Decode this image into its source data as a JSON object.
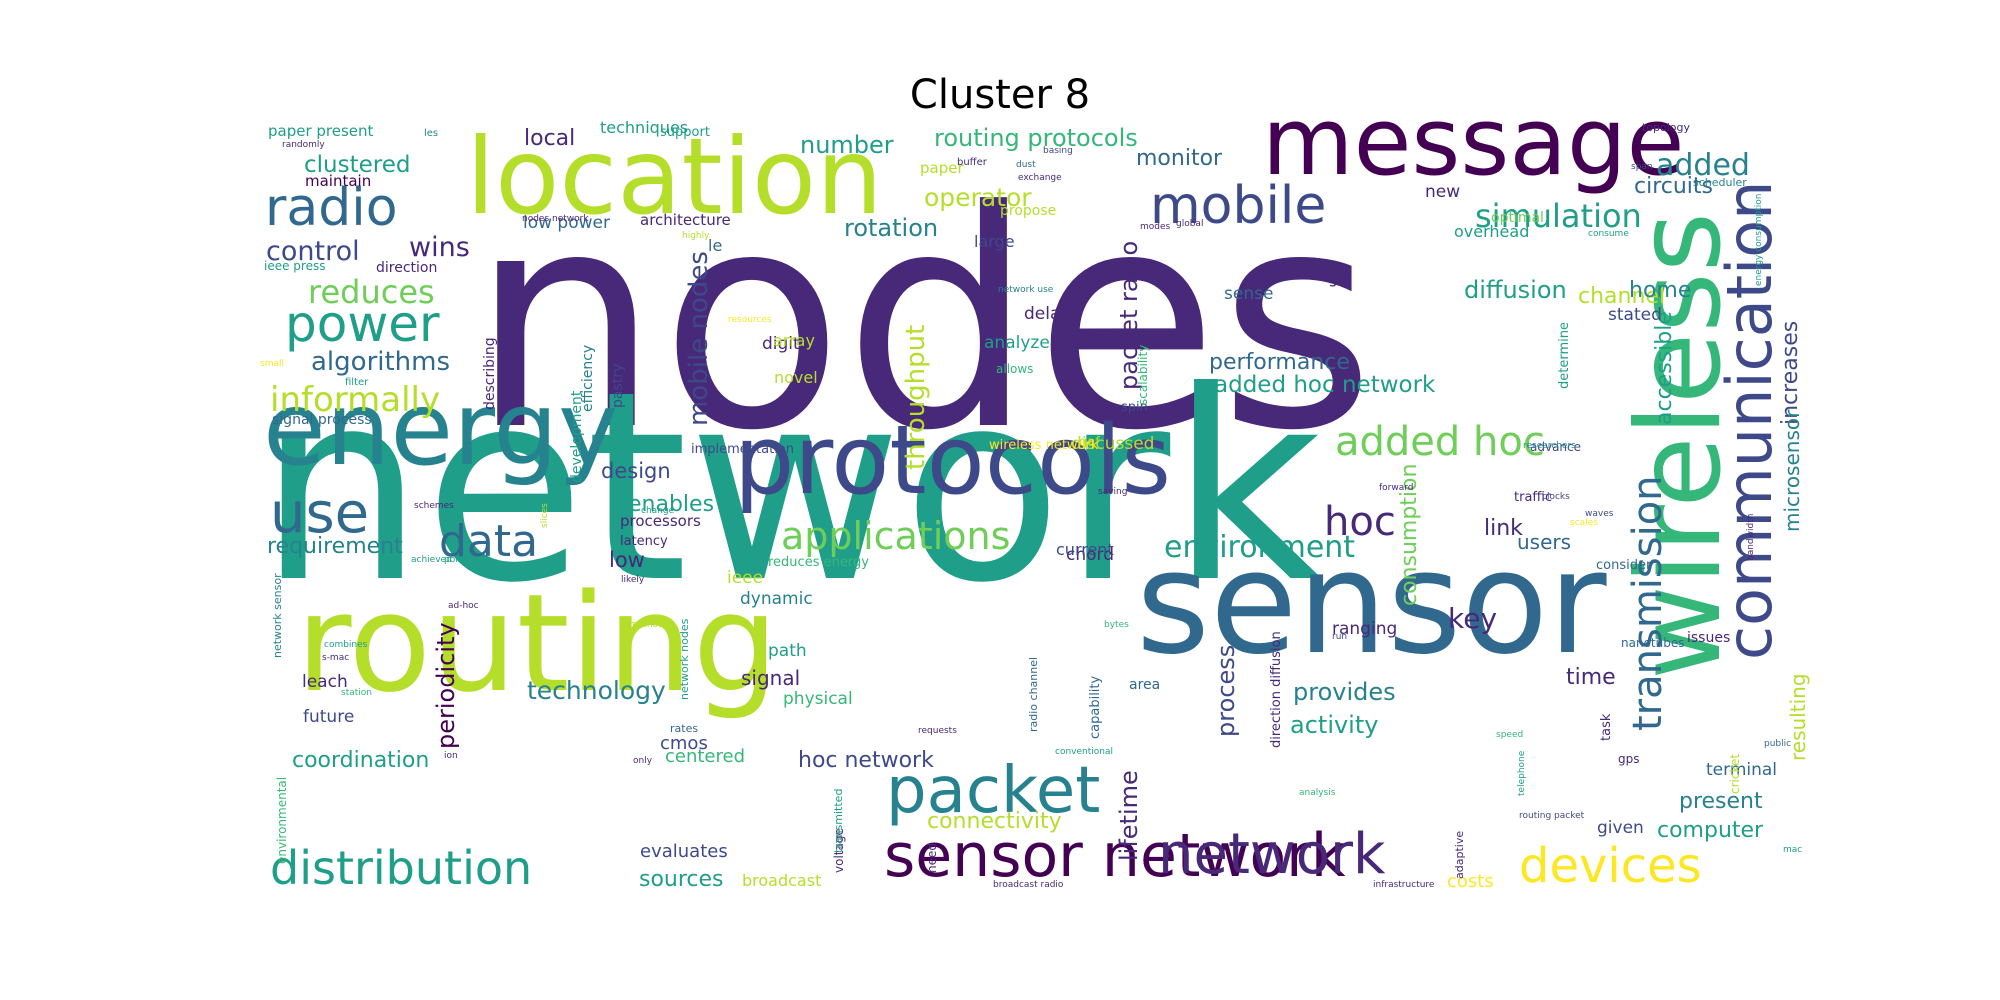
{
  "title": "Cluster 8",
  "palette": {
    "dark_purple": "#440154",
    "indigo": "#482878",
    "blue_purple": "#3e4989",
    "steel_blue": "#31688e",
    "teal_blue": "#26828e",
    "teal": "#1f9e89",
    "green": "#35b779",
    "light_green": "#6ece58",
    "lime": "#b5de2b",
    "yellow": "#fde725"
  },
  "words": [
    {
      "text": "nodes",
      "color": "indigo"
    },
    {
      "text": "network",
      "color": "teal"
    },
    {
      "text": "sensor",
      "color": "steel_blue"
    },
    {
      "text": "routing",
      "color": "lime"
    },
    {
      "text": "location",
      "color": "lime"
    },
    {
      "text": "message",
      "color": "dark_purple"
    },
    {
      "text": "protocols",
      "color": "blue_purple"
    },
    {
      "text": "energy",
      "color": "teal_blue"
    },
    {
      "text": "wireless",
      "color": "green"
    },
    {
      "text": "communication",
      "color": "blue_purple"
    },
    {
      "text": "mobile",
      "color": "blue_purple"
    },
    {
      "text": "radio",
      "color": "steel_blue"
    },
    {
      "text": "packet",
      "color": "teal_blue"
    },
    {
      "text": "sensor network",
      "color": "dark_purple"
    },
    {
      "text": "network",
      "color": "indigo"
    },
    {
      "text": "distribution",
      "color": "teal"
    },
    {
      "text": "use",
      "color": "steel_blue"
    },
    {
      "text": "power",
      "color": "teal"
    },
    {
      "text": "data",
      "color": "steel_blue"
    },
    {
      "text": "devices",
      "color": "yellow"
    },
    {
      "text": "added hoc",
      "color": "light_green"
    },
    {
      "text": "hoc",
      "color": "indigo"
    },
    {
      "text": "transmission",
      "color": "steel_blue"
    },
    {
      "text": "applications",
      "color": "light_green"
    },
    {
      "text": "informally",
      "color": "lime"
    },
    {
      "text": "reduces",
      "color": "light_green"
    },
    {
      "text": "control",
      "color": "blue_purple"
    },
    {
      "text": "wins",
      "color": "indigo"
    },
    {
      "text": "algorithms",
      "color": "steel_blue"
    },
    {
      "text": "simulation",
      "color": "teal"
    },
    {
      "text": "added",
      "color": "teal_blue"
    },
    {
      "text": "circuits",
      "color": "steel_blue"
    },
    {
      "text": "environment",
      "color": "teal"
    },
    {
      "text": "key",
      "color": "indigo"
    },
    {
      "text": "routing protocols",
      "color": "green"
    },
    {
      "text": "clustered",
      "color": "teal"
    },
    {
      "text": "local",
      "color": "indigo"
    },
    {
      "text": "number",
      "color": "teal"
    },
    {
      "text": "operator",
      "color": "lime"
    },
    {
      "text": "rotation",
      "color": "teal_blue"
    },
    {
      "text": "monitor",
      "color": "steel_blue"
    },
    {
      "text": "requirement",
      "color": "teal_blue"
    },
    {
      "text": "performance",
      "color": "steel_blue"
    },
    {
      "text": "added hoc network",
      "color": "teal"
    },
    {
      "text": "diffusion",
      "color": "teal"
    },
    {
      "text": "channel",
      "color": "lime"
    },
    {
      "text": "home",
      "color": "teal_blue"
    },
    {
      "text": "design",
      "color": "blue_purple"
    },
    {
      "text": "enables",
      "color": "teal"
    },
    {
      "text": "low",
      "color": "indigo"
    },
    {
      "text": "technology",
      "color": "teal_blue"
    },
    {
      "text": "signal",
      "color": "indigo"
    },
    {
      "text": "hoc network",
      "color": "blue_purple"
    },
    {
      "text": "coordination",
      "color": "teal"
    },
    {
      "text": "connectivity",
      "color": "lime"
    },
    {
      "text": "process",
      "color": "blue_purple"
    },
    {
      "text": "provides",
      "color": "teal_blue"
    },
    {
      "text": "activity",
      "color": "teal"
    },
    {
      "text": "time",
      "color": "indigo"
    },
    {
      "text": "users",
      "color": "steel_blue"
    },
    {
      "text": "link",
      "color": "indigo"
    },
    {
      "text": "present",
      "color": "teal_blue"
    },
    {
      "text": "computer",
      "color": "teal"
    },
    {
      "text": "sources",
      "color": "teal"
    },
    {
      "text": "evaluates",
      "color": "blue_purple"
    },
    {
      "text": "costs",
      "color": "yellow"
    },
    {
      "text": "broadcast",
      "color": "lime"
    },
    {
      "text": "mobile nodes",
      "color": "blue_purple"
    },
    {
      "text": "throughput",
      "color": "lime"
    },
    {
      "text": "packet radio",
      "color": "indigo"
    },
    {
      "text": "lifetime",
      "color": "indigo"
    },
    {
      "text": "consumption",
      "color": "light_green"
    },
    {
      "text": "accessible",
      "color": "teal"
    },
    {
      "text": "increases",
      "color": "blue_purple"
    },
    {
      "text": "microsensor",
      "color": "teal_blue"
    },
    {
      "text": "resulting",
      "color": "lime"
    },
    {
      "text": "periodicity",
      "color": "dark_purple"
    },
    {
      "text": "ieee",
      "color": "lime"
    },
    {
      "text": "dynamic",
      "color": "teal_blue"
    },
    {
      "text": "path",
      "color": "teal"
    },
    {
      "text": "physical",
      "color": "green"
    },
    {
      "text": "leach",
      "color": "indigo"
    },
    {
      "text": "future",
      "color": "blue_purple"
    },
    {
      "text": "cmos",
      "color": "blue_purple"
    },
    {
      "text": "centered",
      "color": "green"
    },
    {
      "text": "digital",
      "color": "indigo"
    },
    {
      "text": "novel",
      "color": "lime"
    },
    {
      "text": "delay",
      "color": "indigo"
    },
    {
      "text": "analyze",
      "color": "teal"
    },
    {
      "text": "chord",
      "color": "indigo"
    },
    {
      "text": "current",
      "color": "blue_purple"
    },
    {
      "text": "discussed",
      "color": "lime"
    },
    {
      "text": "sense",
      "color": "steel_blue"
    },
    {
      "text": "stated",
      "color": "blue_purple"
    },
    {
      "text": "ranging",
      "color": "indigo"
    },
    {
      "text": "terminal",
      "color": "steel_blue"
    },
    {
      "text": "given",
      "color": "blue_purple"
    },
    {
      "text": "new",
      "color": "indigo"
    },
    {
      "text": "overhead",
      "color": "teal"
    },
    {
      "text": "optimal",
      "color": "light_green"
    },
    {
      "text": "large",
      "color": "blue_purple"
    },
    {
      "text": "le",
      "color": "steel_blue"
    },
    {
      "text": "low power",
      "color": "steel_blue"
    },
    {
      "text": "architecture",
      "color": "indigo"
    },
    {
      "text": "techniques",
      "color": "teal"
    },
    {
      "text": "paper",
      "color": "lime"
    },
    {
      "text": "propose",
      "color": "lime"
    },
    {
      "text": "paper present",
      "color": "teal"
    },
    {
      "text": "maintain",
      "color": "dark_purple"
    },
    {
      "text": "support",
      "color": "teal"
    },
    {
      "text": "ieee press",
      "color": "teal"
    },
    {
      "text": "direction",
      "color": "indigo"
    },
    {
      "text": "signal process",
      "color": "steel_blue"
    },
    {
      "text": "implementation",
      "color": "blue_purple"
    },
    {
      "text": "processors",
      "color": "indigo"
    },
    {
      "text": "latency",
      "color": "indigo"
    },
    {
      "text": "efficiency",
      "color": "teal_blue"
    },
    {
      "text": "pastry",
      "color": "blue_purple"
    },
    {
      "text": "development",
      "color": "teal"
    },
    {
      "text": "describing",
      "color": "indigo"
    },
    {
      "text": "array",
      "color": "lime"
    },
    {
      "text": "allows",
      "color": "green"
    },
    {
      "text": "spin",
      "color": "blue_purple"
    },
    {
      "text": "scalability",
      "color": "green"
    },
    {
      "text": "gls",
      "color": "indigo"
    },
    {
      "text": "nanotubes",
      "color": "steel_blue"
    },
    {
      "text": "issues",
      "color": "indigo"
    },
    {
      "text": "determine",
      "color": "teal"
    },
    {
      "text": "task",
      "color": "indigo"
    },
    {
      "text": "gps",
      "color": "indigo"
    },
    {
      "text": "consider",
      "color": "steel_blue"
    },
    {
      "text": "traffic",
      "color": "indigo"
    },
    {
      "text": "advance",
      "color": "blue_purple"
    },
    {
      "text": "gaf",
      "color": "lime"
    },
    {
      "text": "area",
      "color": "steel_blue"
    },
    {
      "text": "capability",
      "color": "steel_blue"
    },
    {
      "text": "radio channel",
      "color": "steel_blue"
    },
    {
      "text": "direction diffusion",
      "color": "indigo"
    },
    {
      "text": "adaptive",
      "color": "indigo"
    },
    {
      "text": "voltage",
      "color": "indigo"
    },
    {
      "text": "transmitted",
      "color": "teal"
    },
    {
      "text": "need",
      "color": "indigo"
    },
    {
      "text": "rates",
      "color": "steel_blue"
    },
    {
      "text": "network nodes",
      "color": "teal"
    },
    {
      "text": "cricket",
      "color": "lime"
    },
    {
      "text": "wireless network",
      "color": "yellow"
    },
    {
      "text": "reduces energy",
      "color": "green"
    },
    {
      "text": "environmental",
      "color": "green"
    },
    {
      "text": "network sensor",
      "color": "teal_blue"
    },
    {
      "text": "topology",
      "color": "indigo"
    },
    {
      "text": "scheduler",
      "color": "teal_blue"
    },
    {
      "text": "filter",
      "color": "teal"
    },
    {
      "text": "les",
      "color": "teal_blue"
    },
    {
      "text": "randomly",
      "color": "indigo"
    },
    {
      "text": "buffer",
      "color": "indigo"
    },
    {
      "text": "dust",
      "color": "steel_blue"
    },
    {
      "text": "basing",
      "color": "blue_purple"
    },
    {
      "text": "exchange",
      "color": "indigo"
    },
    {
      "text": "highly",
      "color": "lime"
    },
    {
      "text": "nodes network",
      "color": "indigo"
    },
    {
      "text": "modes",
      "color": "indigo"
    },
    {
      "text": "global",
      "color": "indigo"
    },
    {
      "text": "resources",
      "color": "yellow"
    },
    {
      "text": "network use",
      "color": "teal_blue"
    },
    {
      "text": "consume",
      "color": "teal"
    },
    {
      "text": "span",
      "color": "blue_purple"
    },
    {
      "text": "energy consumption",
      "color": "teal"
    },
    {
      "text": "forward",
      "color": "indigo"
    },
    {
      "text": "researchers",
      "color": "teal_blue"
    },
    {
      "text": "clocks",
      "color": "blue_purple"
    },
    {
      "text": "scales",
      "color": "yellow"
    },
    {
      "text": "waves",
      "color": "blue_purple"
    },
    {
      "text": "bandwidth",
      "color": "indigo"
    },
    {
      "text": "saving",
      "color": "indigo"
    },
    {
      "text": "achieved",
      "color": "teal"
    },
    {
      "text": "point",
      "color": "teal"
    },
    {
      "text": "likely",
      "color": "indigo"
    },
    {
      "text": "ad-hoc",
      "color": "indigo"
    },
    {
      "text": "method",
      "color": "lime"
    },
    {
      "text": "combines",
      "color": "teal"
    },
    {
      "text": "s-mac",
      "color": "indigo"
    },
    {
      "text": "station",
      "color": "green"
    },
    {
      "text": "ion",
      "color": "indigo"
    },
    {
      "text": "only",
      "color": "indigo"
    },
    {
      "text": "requests",
      "color": "indigo"
    },
    {
      "text": "bytes",
      "color": "green"
    },
    {
      "text": "run",
      "color": "blue_purple"
    },
    {
      "text": "speed",
      "color": "green"
    },
    {
      "text": "public",
      "color": "steel_blue"
    },
    {
      "text": "analysis",
      "color": "green"
    },
    {
      "text": "telephone",
      "color": "teal"
    },
    {
      "text": "routing packet",
      "color": "blue_purple"
    },
    {
      "text": "conventional",
      "color": "teal"
    },
    {
      "text": "broadcast radio",
      "color": "indigo"
    },
    {
      "text": "infrastructure",
      "color": "indigo"
    },
    {
      "text": "mac",
      "color": "teal"
    },
    {
      "text": "small",
      "color": "yellow"
    },
    {
      "text": "schemes",
      "color": "indigo"
    },
    {
      "text": "slices",
      "color": "lime"
    },
    {
      "text": "change",
      "color": "teal"
    }
  ]
}
